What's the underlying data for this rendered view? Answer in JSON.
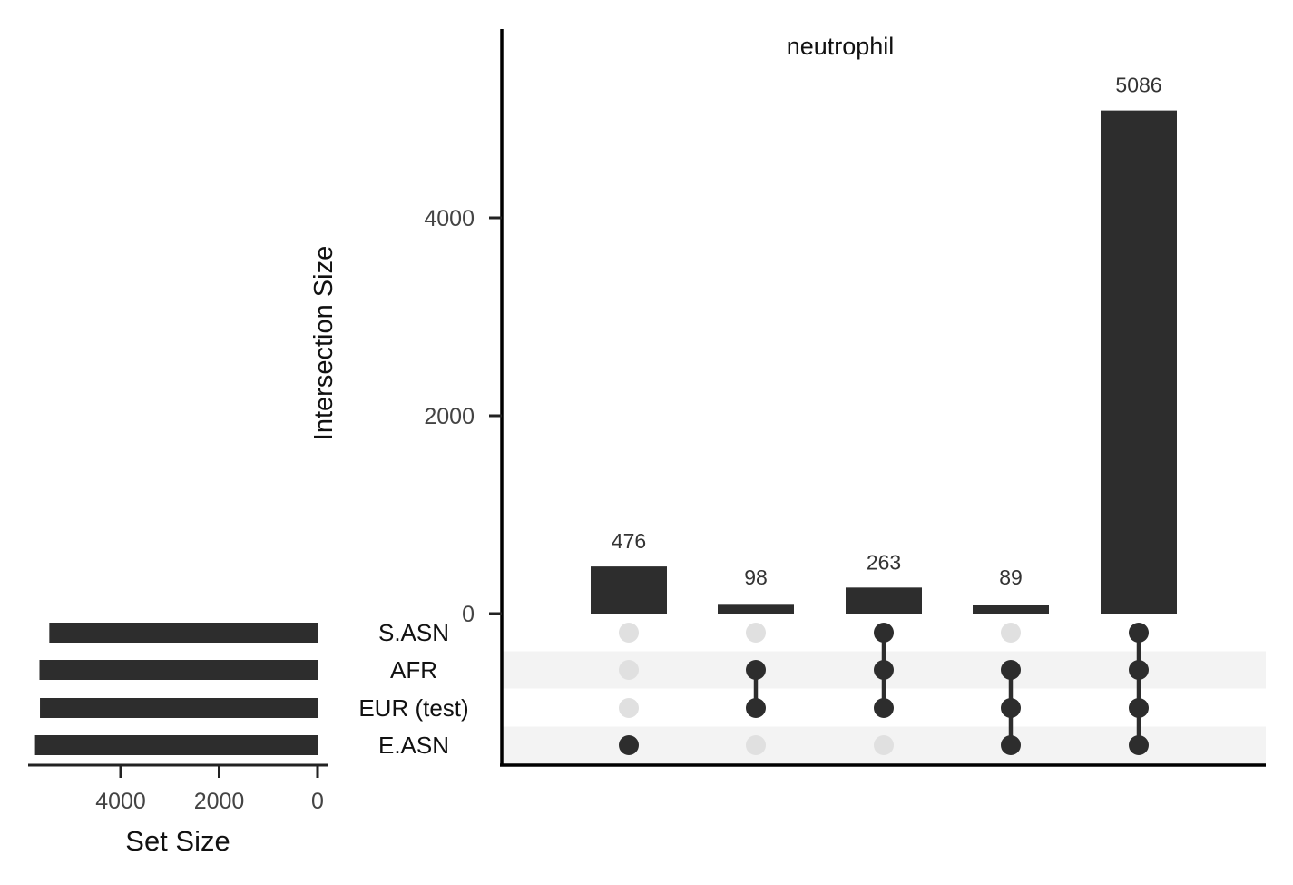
{
  "chart_data": {
    "type": "bar",
    "chart_subtype": "upset",
    "title": "neutrophil",
    "intersection_ylabel": "Intersection Size",
    "intersection_yticks": [
      0,
      2000,
      4000
    ],
    "intersection_ylim": [
      0,
      5700
    ],
    "intersections": [
      {
        "value": 476,
        "value_label": "476",
        "members": [
          "E.ASN"
        ]
      },
      {
        "value": 98,
        "value_label": "98",
        "members": [
          "AFR",
          "EUR (test)"
        ]
      },
      {
        "value": 263,
        "value_label": "263",
        "members": [
          "S.ASN",
          "AFR",
          "EUR (test)"
        ]
      },
      {
        "value": 89,
        "value_label": "89",
        "members": [
          "AFR",
          "EUR (test)",
          "E.ASN"
        ]
      },
      {
        "value": 5086,
        "value_label": "5086",
        "members": [
          "S.ASN",
          "AFR",
          "EUR (test)",
          "E.ASN"
        ]
      }
    ],
    "sets": [
      {
        "name": "S.ASN",
        "size": 5450
      },
      {
        "name": "AFR",
        "size": 5650
      },
      {
        "name": "EUR (test)",
        "size": 5640
      },
      {
        "name": "E.ASN",
        "size": 5740
      }
    ],
    "set_size_xlabel": "Set Size",
    "set_size_ticks": [
      4000,
      2000,
      0
    ],
    "set_size_xlim": [
      0,
      6000
    ],
    "grid": false,
    "colors": {
      "bar": "#2d2d2d",
      "dot_active": "#2d2d2d",
      "dot_inactive": "#e0e0e0",
      "row_stripe": "#f3f3f3",
      "axis": "#000000",
      "tick_text": "#444444"
    }
  }
}
